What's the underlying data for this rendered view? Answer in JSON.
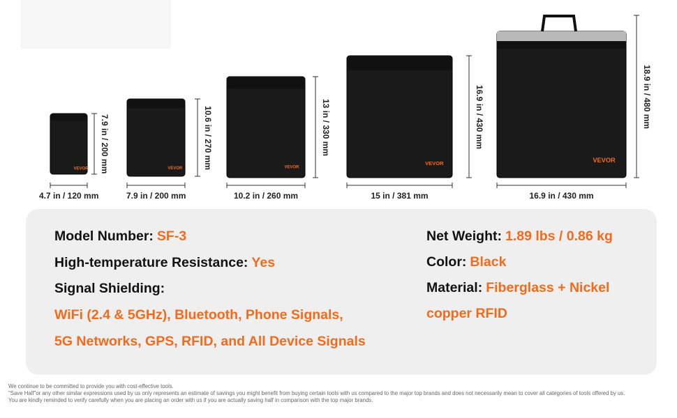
{
  "brand": "VEVOR",
  "bags": [
    {
      "width": "4.7 in / 120 mm",
      "height": "7.9 in / 200 mm"
    },
    {
      "width": "7.9 in / 200 mm",
      "height": "10.6 in / 270 mm"
    },
    {
      "width": "10.2 in / 260 mm",
      "height": "13 in / 330 mm"
    },
    {
      "width": "15 in / 381 mm",
      "height": "16.9 in / 430 mm"
    },
    {
      "width": "16.9 in / 430 mm",
      "height": "18.9 in / 480 mm"
    }
  ],
  "specs": {
    "left": [
      {
        "label": "Model Number:",
        "value": "SF-3"
      },
      {
        "label": "High-temperature Resistance:",
        "value": "Yes"
      },
      {
        "label": "Signal Shielding:"
      },
      {
        "value": "WiFi (2.4 & 5GHz), Bluetooth, Phone Signals,"
      },
      {
        "value": "5G Networks, GPS, RFID, and All Device Signals"
      }
    ],
    "right": [
      {
        "label": "Net Weight:",
        "value": "1.89 lbs / 0.86 kg"
      },
      {
        "label": "Color:",
        "value": "Black"
      },
      {
        "label": "Material:",
        "value": "Fiberglass + Nickel"
      },
      {
        "value": "copper RFID"
      }
    ]
  },
  "footnote": [
    "We continue to be committed to provide you with cost-effective tools.",
    "\"Save Half\"or any other similar expressions used by us only represents an estimate of savings you might benefit from buying certain tools with us compared to the major top brands and does not necessarily mean to cover all categories of tools offered by us.",
    "You are kindly reminded to verify carefully when you are placing an order with us if you are actually saving half in comparison with the top major brands."
  ]
}
